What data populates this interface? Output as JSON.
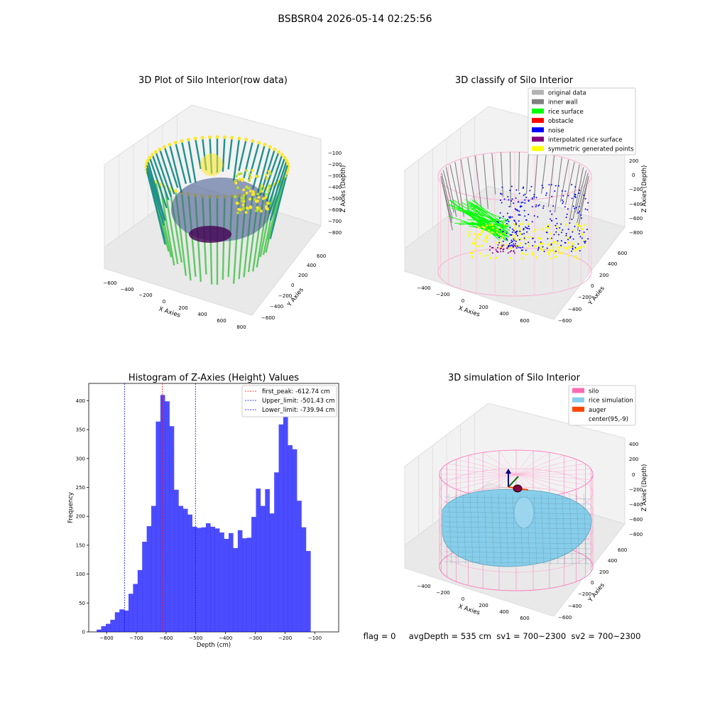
{
  "figure": {
    "suptitle": "BSBSR04 2026-05-14 02:25:56",
    "status_line": "flag = 0     avgDepth = 535 cm  sv1 = 700~2300  sv2 = 700~2300"
  },
  "panels": {
    "raw": {
      "title": "3D Plot of Silo Interior(row data)",
      "xlabel": "X Axies",
      "ylabel": "Y Axies",
      "zlabel": "Z Axies (Depth)",
      "xticks": [
        "−600",
        "−400",
        "−200",
        "0",
        "200",
        "400",
        "600",
        "800"
      ],
      "yticks": [
        "−600",
        "−400",
        "−200",
        "0",
        "200",
        "400",
        "600"
      ],
      "zticks": [
        "−100",
        "−200",
        "−300",
        "−400",
        "−500",
        "−600",
        "−700",
        "−800"
      ]
    },
    "classify": {
      "title": "3D classify of Silo Interior",
      "xlabel": "X Axies",
      "ylabel": "Y Axies",
      "zlabel": "Z Axies (Depth)",
      "xticks": [
        "−400",
        "−200",
        "0",
        "200",
        "400",
        "600"
      ],
      "yticks": [
        "−600",
        "−400",
        "−200",
        "0",
        "200",
        "400",
        "600"
      ],
      "zticks": [
        "200",
        "0",
        "−200",
        "−400",
        "−600",
        "−800"
      ],
      "legend": [
        {
          "label": "original data",
          "color": "#b3b3b3"
        },
        {
          "label": "inner wall",
          "color": "#808080"
        },
        {
          "label": "rice surface",
          "color": "#00ff00"
        },
        {
          "label": "obstacle",
          "color": "#ff0000"
        },
        {
          "label": "noise",
          "color": "#0000ff"
        },
        {
          "label": "interpolated rice surface",
          "color": "#800080"
        },
        {
          "label": "symmetric generated points",
          "color": "#ffff00"
        }
      ]
    },
    "simulation": {
      "title": "3D simulation of Silo Interior",
      "xlabel": "X Axies",
      "ylabel": "Y Axies",
      "zlabel": "Z Axies (Depth)",
      "xticks": [
        "−400",
        "−200",
        "0",
        "200",
        "400",
        "600"
      ],
      "yticks": [
        "−600",
        "−400",
        "−200",
        "0",
        "200",
        "400",
        "600"
      ],
      "zticks": [
        "400",
        "200",
        "0",
        "−200",
        "−400",
        "−600",
        "−800"
      ],
      "legend": [
        {
          "label": "silo",
          "color": "#ff69b4"
        },
        {
          "label": "rice simulation",
          "color": "#87ceeb"
        },
        {
          "label": "auger",
          "color": "#ff4500"
        },
        {
          "label": "center(95,-9)",
          "color": ""
        }
      ]
    }
  },
  "chart_data": {
    "type": "bar",
    "title": "Histogram of Z-Axies (Height) Values",
    "xlabel": "Depth (cm)",
    "ylabel": "Frequency",
    "xlim": [
      -860,
      -20
    ],
    "ylim": [
      0,
      430
    ],
    "xticks": [
      -800,
      -700,
      -600,
      -500,
      -400,
      -300,
      -200,
      -100
    ],
    "xtick_labels": [
      "−800",
      "−700",
      "−600",
      "−500",
      "−400",
      "−300",
      "−200",
      "−100"
    ],
    "yticks": [
      0,
      50,
      100,
      150,
      200,
      250,
      300,
      350,
      400
    ],
    "bar_color": "#0000ff",
    "bin_width": 15.3,
    "bin_start": -833.5,
    "values": [
      4,
      10,
      14,
      21,
      34,
      39,
      37,
      66,
      83,
      107,
      156,
      183,
      218,
      364,
      410,
      399,
      356,
      246,
      218,
      213,
      203,
      182,
      180,
      181,
      188,
      182,
      179,
      172,
      161,
      171,
      145,
      176,
      162,
      163,
      199,
      248,
      218,
      247,
      205,
      276,
      359,
      372,
      323,
      316,
      227,
      181,
      140
    ],
    "vlines": [
      {
        "x": -612.74,
        "color": "#ff0000",
        "label": "first_peak: -612.74 cm"
      },
      {
        "x": -501.43,
        "color": "#0000ff",
        "label": "Upper_limit: -501.43 cm"
      },
      {
        "x": -739.94,
        "color": "#0000ff",
        "label": "Lower_limit: -739.94 cm"
      }
    ],
    "legend_position": "top-right",
    "grid": false
  }
}
